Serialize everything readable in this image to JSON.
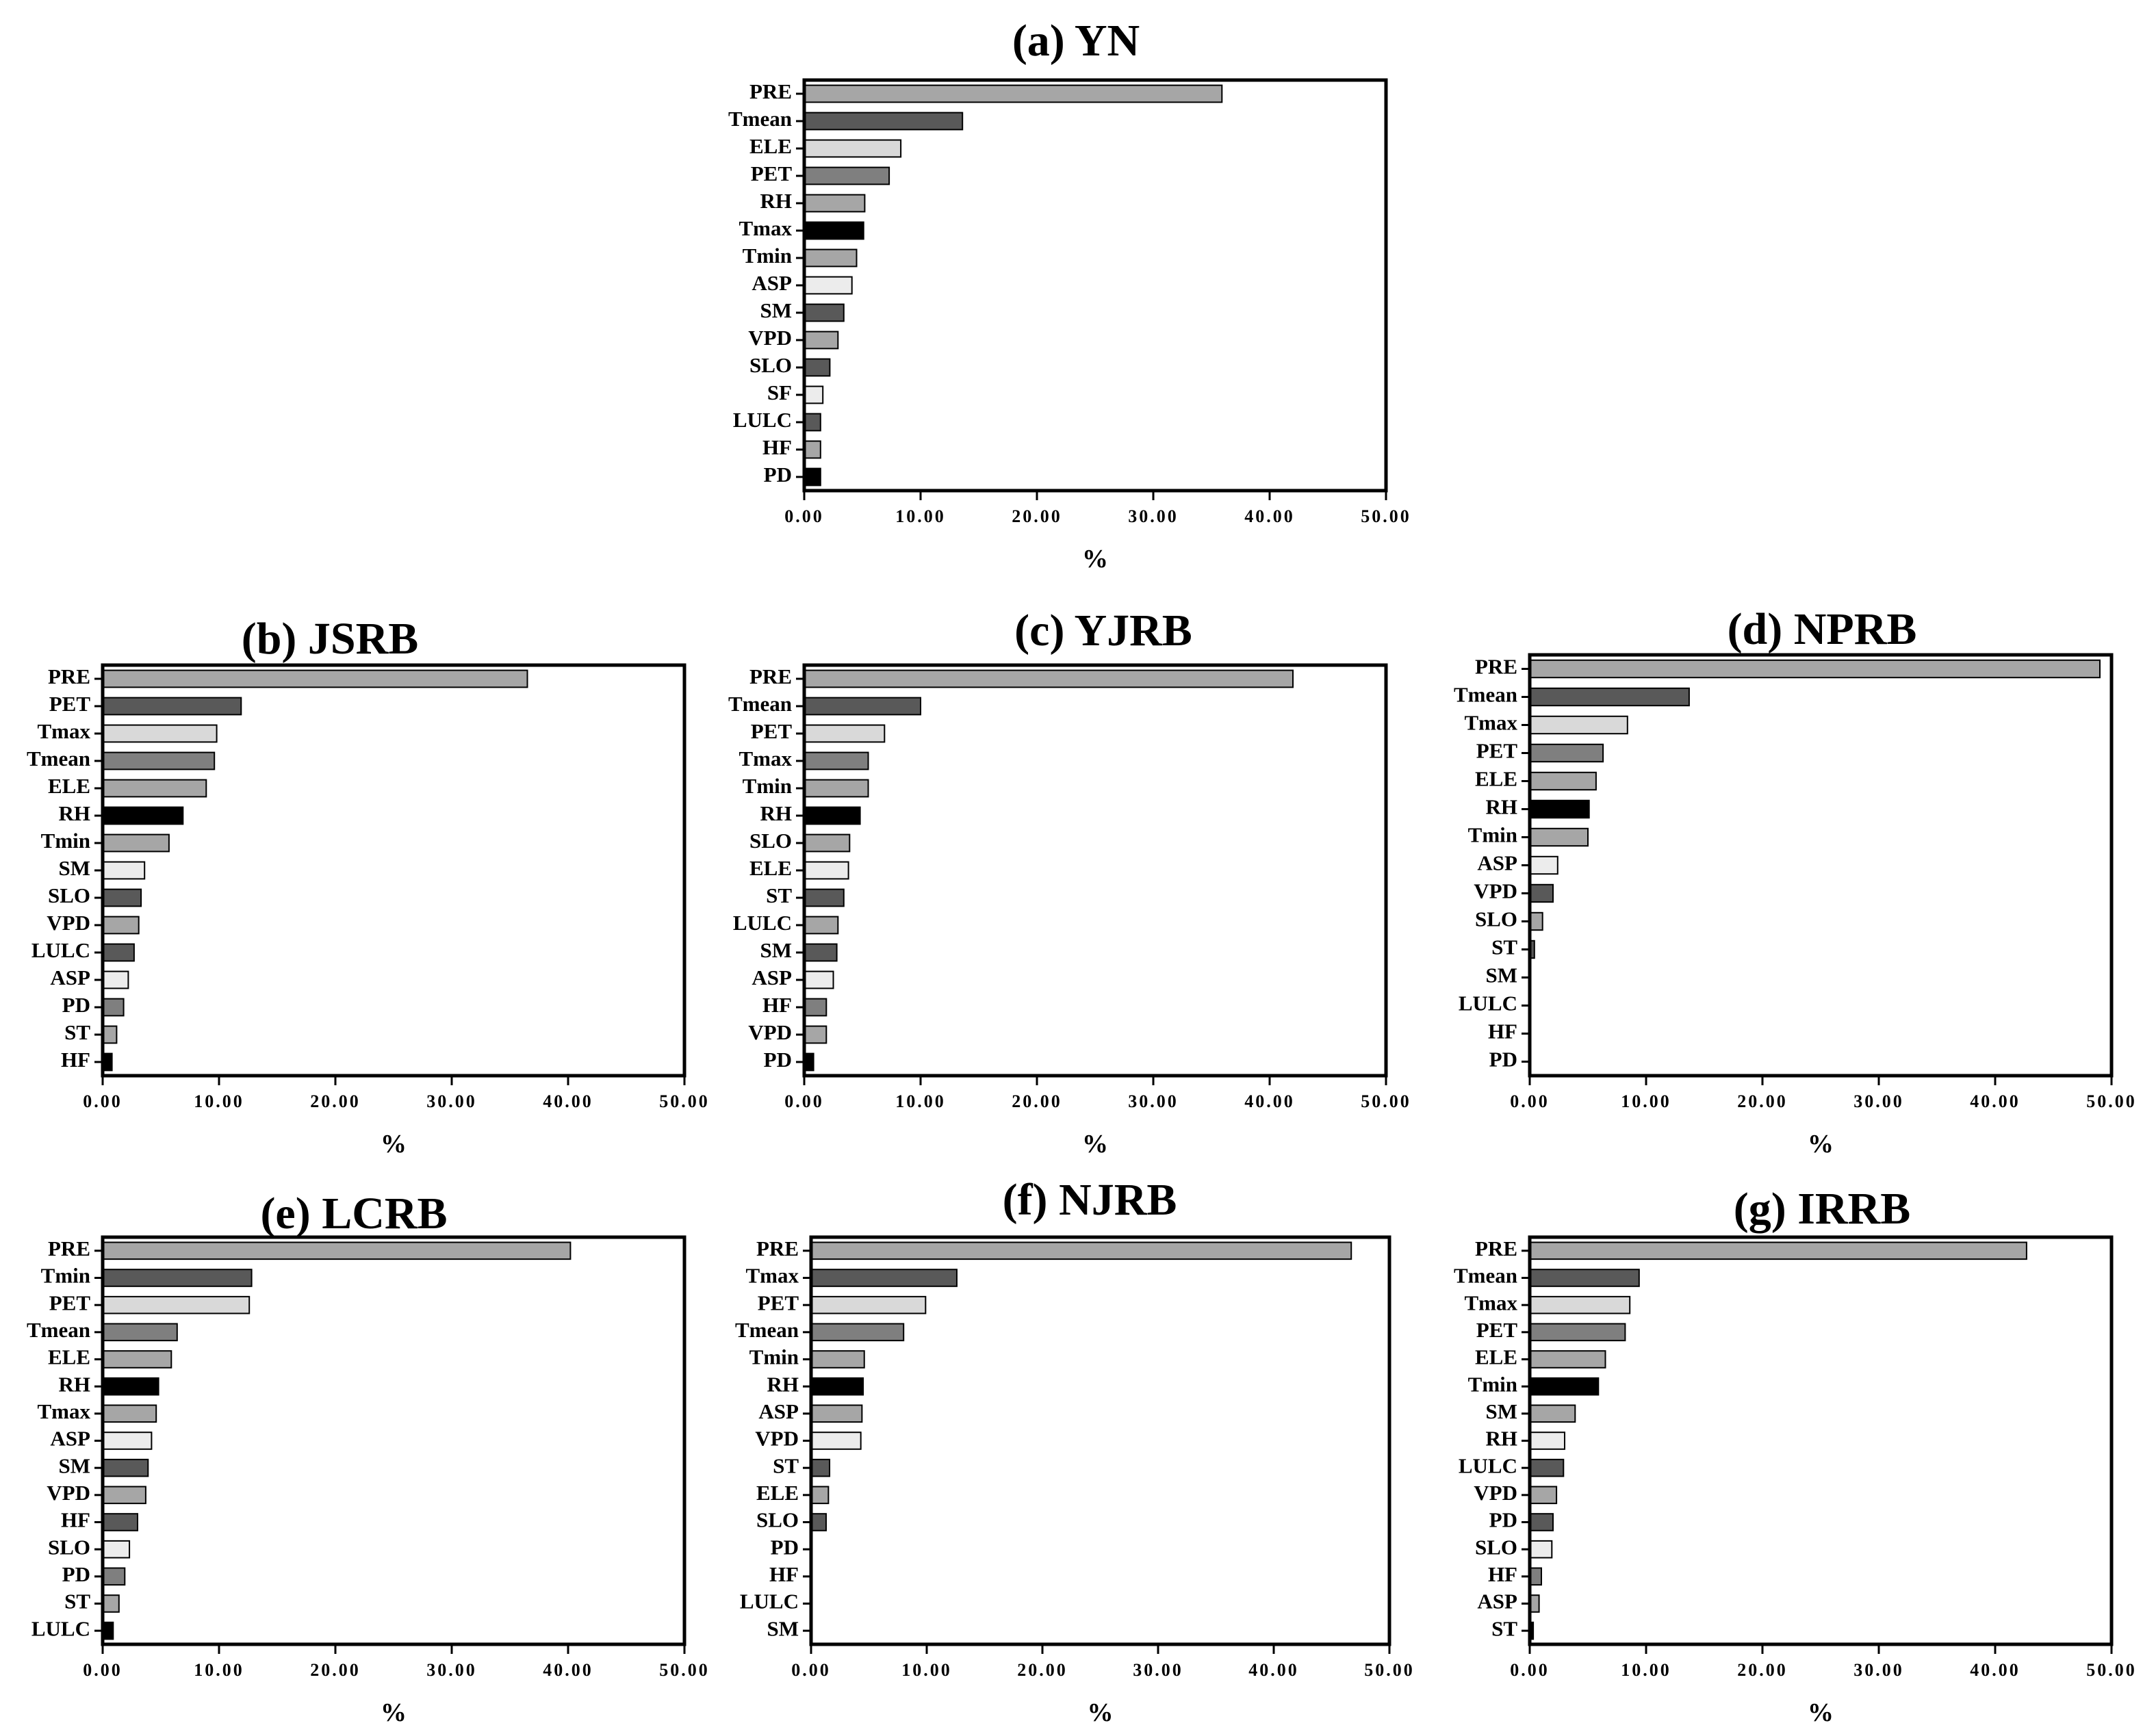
{
  "chart_data": [
    {
      "type": "bar",
      "orientation": "horizontal",
      "title": "(a) YN",
      "xlabel": "%",
      "xlim": [
        0,
        50
      ],
      "xticks": [
        "0.00",
        "10.00",
        "20.00",
        "30.00",
        "40.00",
        "50.00"
      ],
      "categories": [
        "PRE",
        "Tmean",
        "ELE",
        "PET",
        "RH",
        "Tmax",
        "Tmin",
        "ASP",
        "SM",
        "VPD",
        "SLO",
        "SF",
        "LULC",
        "HF",
        "PD"
      ],
      "values": [
        35.9,
        13.6,
        8.3,
        7.3,
        5.2,
        5.1,
        4.5,
        4.1,
        3.4,
        2.9,
        2.2,
        1.6,
        1.4,
        1.4,
        1.4
      ],
      "colors": [
        "#a6a6a6",
        "#595959",
        "#d9d9d9",
        "#7f7f7f",
        "#a6a6a6",
        "#000000",
        "#a6a6a6",
        "#ececec",
        "#595959",
        "#a6a6a6",
        "#595959",
        "#ececec",
        "#595959",
        "#a6a6a6",
        "#000000"
      ]
    },
    {
      "type": "bar",
      "orientation": "horizontal",
      "title": "(b) JSRB",
      "xlabel": "%",
      "xlim": [
        0,
        50
      ],
      "xticks": [
        "0.00",
        "10.00",
        "20.00",
        "30.00",
        "40.00",
        "50.00"
      ],
      "categories": [
        "PRE",
        "PET",
        "Tmax",
        "Tmean",
        "ELE",
        "RH",
        "Tmin",
        "SM",
        "SLO",
        "VPD",
        "LULC",
        "ASP",
        "PD",
        "ST",
        "HF"
      ],
      "values": [
        36.5,
        11.9,
        9.8,
        9.6,
        8.9,
        6.9,
        5.7,
        3.6,
        3.3,
        3.1,
        2.7,
        2.2,
        1.8,
        1.2,
        0.8
      ],
      "colors": [
        "#a6a6a6",
        "#595959",
        "#d9d9d9",
        "#7f7f7f",
        "#a6a6a6",
        "#000000",
        "#a6a6a6",
        "#ececec",
        "#595959",
        "#a6a6a6",
        "#595959",
        "#ececec",
        "#7f7f7f",
        "#a6a6a6",
        "#000000"
      ]
    },
    {
      "type": "bar",
      "orientation": "horizontal",
      "title": "(c) YJRB",
      "xlabel": "%",
      "xlim": [
        0,
        50
      ],
      "xticks": [
        "0.00",
        "10.00",
        "20.00",
        "30.00",
        "40.00",
        "50.00"
      ],
      "categories": [
        "PRE",
        "Tmean",
        "PET",
        "Tmax",
        "Tmin",
        "RH",
        "SLO",
        "ELE",
        "ST",
        "LULC",
        "SM",
        "ASP",
        "HF",
        "VPD",
        "PD"
      ],
      "values": [
        42.0,
        10.0,
        6.9,
        5.5,
        5.5,
        4.8,
        3.9,
        3.8,
        3.4,
        2.9,
        2.8,
        2.5,
        1.9,
        1.9,
        0.8
      ],
      "colors": [
        "#a6a6a6",
        "#595959",
        "#d9d9d9",
        "#7f7f7f",
        "#a6a6a6",
        "#000000",
        "#a6a6a6",
        "#ececec",
        "#595959",
        "#a6a6a6",
        "#595959",
        "#ececec",
        "#7f7f7f",
        "#a6a6a6",
        "#000000"
      ]
    },
    {
      "type": "bar",
      "orientation": "horizontal",
      "title": "(d) NPRB",
      "xlabel": "%",
      "xlim": [
        0,
        50
      ],
      "xticks": [
        "0.00",
        "10.00",
        "20.00",
        "30.00",
        "40.00",
        "50.00"
      ],
      "categories": [
        "PRE",
        "Tmean",
        "Tmax",
        "PET",
        "ELE",
        "RH",
        "Tmin",
        "ASP",
        "VPD",
        "SLO",
        "ST",
        "SM",
        "LULC",
        "HF",
        "PD"
      ],
      "values": [
        49.0,
        13.7,
        8.4,
        6.3,
        5.7,
        5.1,
        5.0,
        2.4,
        2.0,
        1.1,
        0.4,
        0.0,
        0.0,
        0.0,
        0.0
      ],
      "colors": [
        "#a6a6a6",
        "#595959",
        "#d9d9d9",
        "#7f7f7f",
        "#a6a6a6",
        "#000000",
        "#a6a6a6",
        "#ececec",
        "#595959",
        "#a6a6a6",
        "#595959",
        "#ececec",
        "#7f7f7f",
        "#a6a6a6",
        "#000000"
      ]
    },
    {
      "type": "bar",
      "orientation": "horizontal",
      "title": "(e) LCRB",
      "xlabel": "%",
      "xlim": [
        0,
        50
      ],
      "xticks": [
        "0.00",
        "10.00",
        "20.00",
        "30.00",
        "40.00",
        "50.00"
      ],
      "categories": [
        "PRE",
        "Tmin",
        "PET",
        "Tmean",
        "ELE",
        "RH",
        "Tmax",
        "ASP",
        "SM",
        "VPD",
        "HF",
        "SLO",
        "PD",
        "ST",
        "LULC"
      ],
      "values": [
        40.2,
        12.8,
        12.6,
        6.4,
        5.9,
        4.8,
        4.6,
        4.2,
        3.9,
        3.7,
        3.0,
        2.3,
        1.9,
        1.4,
        0.9
      ],
      "colors": [
        "#a6a6a6",
        "#595959",
        "#d9d9d9",
        "#7f7f7f",
        "#a6a6a6",
        "#000000",
        "#a6a6a6",
        "#ececec",
        "#595959",
        "#a6a6a6",
        "#595959",
        "#ececec",
        "#7f7f7f",
        "#a6a6a6",
        "#000000"
      ]
    },
    {
      "type": "bar",
      "orientation": "horizontal",
      "title": "(f) NJRB",
      "xlabel": "%",
      "xlim": [
        0,
        50
      ],
      "xticks": [
        "0.00",
        "10.00",
        "20.00",
        "30.00",
        "40.00",
        "50.00"
      ],
      "categories": [
        "PRE",
        "Tmax",
        "PET",
        "Tmean",
        "Tmin",
        "RH",
        "ASP",
        "VPD",
        "ST",
        "ELE",
        "SLO",
        "PD",
        "HF",
        "LULC",
        "SM"
      ],
      "values": [
        46.7,
        12.6,
        9.9,
        8.0,
        4.6,
        4.5,
        4.4,
        4.3,
        1.6,
        1.5,
        1.3,
        0.0,
        0.0,
        0.0,
        0.0
      ],
      "colors": [
        "#a6a6a6",
        "#595959",
        "#d9d9d9",
        "#7f7f7f",
        "#a6a6a6",
        "#000000",
        "#a6a6a6",
        "#ececec",
        "#595959",
        "#a6a6a6",
        "#595959",
        "#ececec",
        "#7f7f7f",
        "#a6a6a6",
        "#000000"
      ]
    },
    {
      "type": "bar",
      "orientation": "horizontal",
      "title": "(g) IRRB",
      "xlabel": "%",
      "xlim": [
        0,
        50
      ],
      "xticks": [
        "0.00",
        "10.00",
        "20.00",
        "30.00",
        "40.00",
        "50.00"
      ],
      "categories": [
        "PRE",
        "Tmean",
        "Tmax",
        "PET",
        "ELE",
        "Tmin",
        "SM",
        "RH",
        "LULC",
        "VPD",
        "PD",
        "SLO",
        "HF",
        "ASP",
        "ST"
      ],
      "values": [
        42.7,
        9.4,
        8.6,
        8.2,
        6.5,
        5.9,
        3.9,
        3.0,
        2.9,
        2.3,
        2.0,
        1.9,
        1.0,
        0.8,
        0.3
      ],
      "colors": [
        "#a6a6a6",
        "#595959",
        "#d9d9d9",
        "#7f7f7f",
        "#a6a6a6",
        "#000000",
        "#a6a6a6",
        "#ececec",
        "#595959",
        "#a6a6a6",
        "#595959",
        "#ececec",
        "#7f7f7f",
        "#a6a6a6",
        "#000000"
      ]
    }
  ]
}
